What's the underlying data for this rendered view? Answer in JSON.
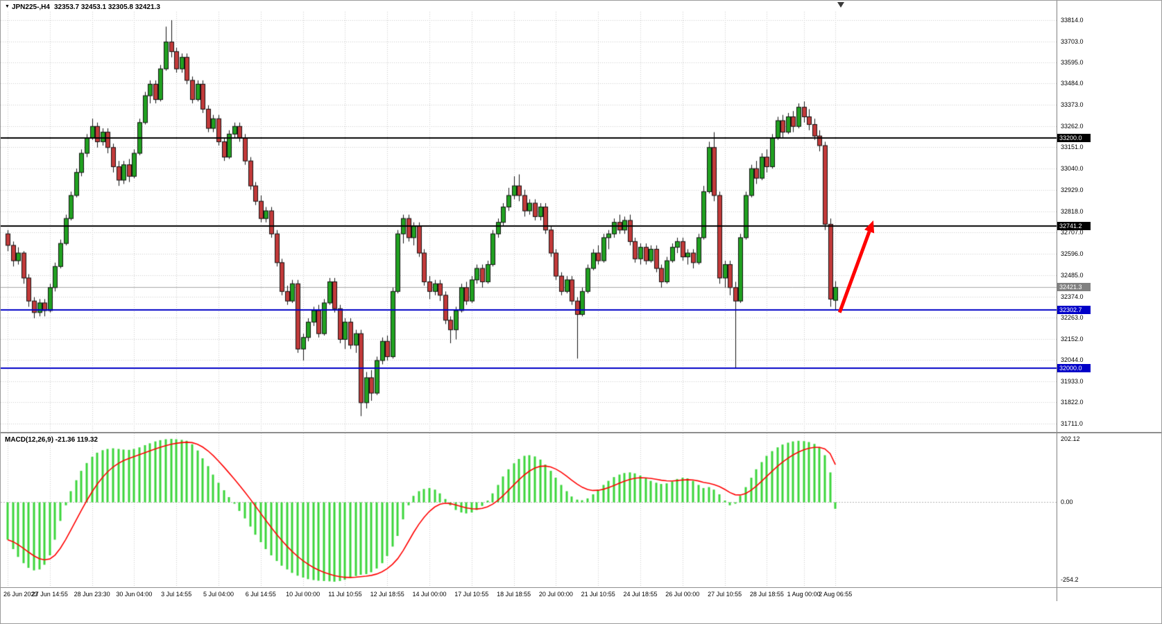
{
  "window": {
    "dropdown_icon": "▼",
    "symbol_info": "JPN225-,H4",
    "ohlc_info": "32353.7 32453.1 32305.8 32421.3"
  },
  "price_axis": {
    "ticks": [
      "33814.0",
      "33703.0",
      "33595.0",
      "33484.0",
      "33373.0",
      "33262.0",
      "33151.0",
      "33040.0",
      "32929.0",
      "32818.0",
      "32707.0",
      "32596.0",
      "32485.0",
      "32374.0",
      "32263.0",
      "32152.0",
      "32044.0",
      "31933.0",
      "31822.0",
      "31711.0"
    ]
  },
  "chart_data": {
    "type": "candlestick",
    "symbol": "JPN225-",
    "timeframe": "H4",
    "title": "JPN225-,H4",
    "last_ohlc": {
      "open": 32353.7,
      "high": 32453.1,
      "low": 32305.8,
      "close": 32421.3
    },
    "ylim": [
      31711.0,
      33814.0
    ],
    "colors": {
      "bull": "#21a121",
      "bear": "#c23a3a",
      "wick": "#111111",
      "grid": "#cdcdcd",
      "macd_bar": "#3cd63c",
      "macd_signal": "#ff0000",
      "hline_black": "#000000",
      "hline_blue": "#0000c8",
      "current_gray": "#808080",
      "arrow": "#ff0000"
    },
    "hlines": [
      {
        "price": 33200.0,
        "label": "33200.0",
        "color": "#000000",
        "width": 2
      },
      {
        "price": 32741.2,
        "label": "32741.2",
        "color": "#000000",
        "width": 2
      },
      {
        "price": 32302.7,
        "label": "32302.7",
        "color": "#0000c8",
        "width": 2
      },
      {
        "price": 32000.0,
        "label": "32000.0",
        "color": "#0000c8",
        "width": 2
      }
    ],
    "current_price": {
      "value": 32421.3,
      "label": "32421.3",
      "color": "#808080"
    },
    "arrow": {
      "from_i": 157.8,
      "from_price": 32290,
      "to_i": 164.2,
      "to_price": 32770,
      "stroke_width": 5
    },
    "time_labels": [
      {
        "text": "26 Jun 2023",
        "i": 0
      },
      {
        "text": "27 Jun 14:55",
        "i": 8
      },
      {
        "text": "28 Jun 23:30",
        "i": 16
      },
      {
        "text": "30 Jun 04:00",
        "i": 24
      },
      {
        "text": "3 Jul 14:55",
        "i": 32
      },
      {
        "text": "5 Jul 04:00",
        "i": 40
      },
      {
        "text": "6 Jul 14:55",
        "i": 48
      },
      {
        "text": "10 Jul 00:00",
        "i": 56
      },
      {
        "text": "11 Jul 10:55",
        "i": 64
      },
      {
        "text": "12 Jul 18:55",
        "i": 72
      },
      {
        "text": "14 Jul 00:00",
        "i": 80
      },
      {
        "text": "17 Jul 10:55",
        "i": 88
      },
      {
        "text": "18 Jul 18:55",
        "i": 96
      },
      {
        "text": "20 Jul 00:00",
        "i": 104
      },
      {
        "text": "21 Jul 10:55",
        "i": 112
      },
      {
        "text": "24 Jul 18:55",
        "i": 120
      },
      {
        "text": "26 Jul 00:00",
        "i": 128
      },
      {
        "text": "27 Jul 10:55",
        "i": 136
      },
      {
        "text": "28 Jul 18:55",
        "i": 144
      },
      {
        "text": "1 Aug 00:00",
        "i": 151
      },
      {
        "text": "2 Aug 06:55",
        "i": 157
      }
    ],
    "candles": [
      [
        32700,
        32720,
        32610,
        32640
      ],
      [
        32640,
        32660,
        32530,
        32560
      ],
      [
        32560,
        32630,
        32540,
        32600
      ],
      [
        32600,
        32610,
        32440,
        32470
      ],
      [
        32470,
        32490,
        32320,
        32350
      ],
      [
        32350,
        32370,
        32260,
        32290
      ],
      [
        32290,
        32360,
        32270,
        32340
      ],
      [
        32340,
        32360,
        32270,
        32300
      ],
      [
        32300,
        32440,
        32290,
        32420
      ],
      [
        32420,
        32550,
        32400,
        32530
      ],
      [
        32530,
        32670,
        32520,
        32650
      ],
      [
        32650,
        32800,
        32640,
        32780
      ],
      [
        32780,
        32920,
        32770,
        32900
      ],
      [
        32900,
        33040,
        32890,
        33020
      ],
      [
        33020,
        33140,
        33000,
        33120
      ],
      [
        33120,
        33220,
        33100,
        33200
      ],
      [
        33200,
        33300,
        33190,
        33260
      ],
      [
        33260,
        33280,
        33150,
        33180
      ],
      [
        33180,
        33250,
        33160,
        33230
      ],
      [
        33230,
        33250,
        33120,
        33150
      ],
      [
        33150,
        33170,
        33020,
        33050
      ],
      [
        33050,
        33080,
        32950,
        32980
      ],
      [
        32980,
        33080,
        32960,
        33060
      ],
      [
        33060,
        33090,
        32970,
        33000
      ],
      [
        33000,
        33140,
        32990,
        33120
      ],
      [
        33120,
        33300,
        33110,
        33280
      ],
      [
        33280,
        33440,
        33270,
        33420
      ],
      [
        33420,
        33500,
        33380,
        33480
      ],
      [
        33480,
        33500,
        33380,
        33400
      ],
      [
        33400,
        33580,
        33390,
        33560
      ],
      [
        33560,
        33780,
        33550,
        33700
      ],
      [
        33700,
        33814,
        33620,
        33650
      ],
      [
        33650,
        33670,
        33540,
        33560
      ],
      [
        33560,
        33640,
        33540,
        33620
      ],
      [
        33620,
        33640,
        33480,
        33500
      ],
      [
        33500,
        33520,
        33380,
        33400
      ],
      [
        33400,
        33500,
        33390,
        33480
      ],
      [
        33480,
        33500,
        33330,
        33350
      ],
      [
        33350,
        33370,
        33230,
        33250
      ],
      [
        33250,
        33320,
        33230,
        33300
      ],
      [
        33300,
        33320,
        33160,
        33180
      ],
      [
        33180,
        33200,
        33080,
        33100
      ],
      [
        33100,
        33240,
        33090,
        33220
      ],
      [
        33220,
        33280,
        33200,
        33260
      ],
      [
        33260,
        33280,
        33180,
        33200
      ],
      [
        33200,
        33220,
        33060,
        33080
      ],
      [
        33080,
        33100,
        32930,
        32950
      ],
      [
        32950,
        32970,
        32850,
        32870
      ],
      [
        32870,
        32900,
        32760,
        32780
      ],
      [
        32780,
        32840,
        32760,
        32820
      ],
      [
        32820,
        32840,
        32680,
        32700
      ],
      [
        32700,
        32720,
        32530,
        32550
      ],
      [
        32550,
        32570,
        32380,
        32400
      ],
      [
        32400,
        32430,
        32330,
        32350
      ],
      [
        32350,
        32460,
        32340,
        32440
      ],
      [
        32440,
        32460,
        32080,
        32100
      ],
      [
        32100,
        32180,
        32040,
        32160
      ],
      [
        32160,
        32260,
        32140,
        32240
      ],
      [
        32240,
        32320,
        32220,
        32300
      ],
      [
        32300,
        32330,
        32160,
        32180
      ],
      [
        32180,
        32360,
        32170,
        32340
      ],
      [
        32340,
        32470,
        32330,
        32450
      ],
      [
        32450,
        32470,
        32290,
        32310
      ],
      [
        32310,
        32330,
        32130,
        32150
      ],
      [
        32150,
        32260,
        32100,
        32240
      ],
      [
        32240,
        32260,
        32100,
        32120
      ],
      [
        32120,
        32200,
        32080,
        32180
      ],
      [
        32180,
        32200,
        31750,
        31820
      ],
      [
        31820,
        31980,
        31790,
        31950
      ],
      [
        31950,
        31990,
        31830,
        31870
      ],
      [
        31870,
        32060,
        31860,
        32040
      ],
      [
        32040,
        32160,
        32020,
        32140
      ],
      [
        32140,
        32170,
        32040,
        32060
      ],
      [
        32060,
        32420,
        32050,
        32400
      ],
      [
        32400,
        32720,
        32390,
        32700
      ],
      [
        32700,
        32800,
        32650,
        32780
      ],
      [
        32780,
        32800,
        32660,
        32680
      ],
      [
        32680,
        32760,
        32640,
        32740
      ],
      [
        32740,
        32760,
        32580,
        32600
      ],
      [
        32600,
        32620,
        32430,
        32450
      ],
      [
        32450,
        32480,
        32360,
        32400
      ],
      [
        32400,
        32460,
        32380,
        32440
      ],
      [
        32440,
        32460,
        32350,
        32380
      ],
      [
        32380,
        32400,
        32230,
        32250
      ],
      [
        32250,
        32270,
        32130,
        32200
      ],
      [
        32200,
        32320,
        32150,
        32300
      ],
      [
        32300,
        32440,
        32290,
        32420
      ],
      [
        32420,
        32450,
        32330,
        32350
      ],
      [
        32350,
        32480,
        32340,
        32460
      ],
      [
        32460,
        32540,
        32440,
        32520
      ],
      [
        32520,
        32540,
        32420,
        32450
      ],
      [
        32450,
        32560,
        32440,
        32540
      ],
      [
        32540,
        32720,
        32530,
        32700
      ],
      [
        32700,
        32780,
        32680,
        32760
      ],
      [
        32760,
        32860,
        32740,
        32840
      ],
      [
        32840,
        32940,
        32820,
        32900
      ],
      [
        32900,
        33000,
        32880,
        32950
      ],
      [
        32950,
        33010,
        32870,
        32900
      ],
      [
        32900,
        32930,
        32790,
        32820
      ],
      [
        32820,
        32880,
        32800,
        32860
      ],
      [
        32860,
        32880,
        32770,
        32790
      ],
      [
        32790,
        32860,
        32770,
        32840
      ],
      [
        32840,
        32860,
        32700,
        32720
      ],
      [
        32720,
        32740,
        32580,
        32600
      ],
      [
        32600,
        32620,
        32460,
        32480
      ],
      [
        32480,
        32500,
        32380,
        32400
      ],
      [
        32400,
        32480,
        32390,
        32460
      ],
      [
        32460,
        32480,
        32330,
        32350
      ],
      [
        32350,
        32370,
        32050,
        32280
      ],
      [
        32280,
        32420,
        32270,
        32400
      ],
      [
        32400,
        32540,
        32390,
        32520
      ],
      [
        32520,
        32620,
        32510,
        32600
      ],
      [
        32600,
        32640,
        32540,
        32560
      ],
      [
        32560,
        32700,
        32550,
        32680
      ],
      [
        32680,
        32720,
        32620,
        32700
      ],
      [
        32700,
        32780,
        32680,
        32760
      ],
      [
        32760,
        32800,
        32700,
        32720
      ],
      [
        32720,
        32790,
        32700,
        32770
      ],
      [
        32770,
        32800,
        32640,
        32660
      ],
      [
        32660,
        32680,
        32550,
        32570
      ],
      [
        32570,
        32650,
        32540,
        32630
      ],
      [
        32630,
        32650,
        32540,
        32560
      ],
      [
        32560,
        32640,
        32550,
        32620
      ],
      [
        32620,
        32640,
        32500,
        32520
      ],
      [
        32520,
        32540,
        32420,
        32450
      ],
      [
        32450,
        32580,
        32440,
        32560
      ],
      [
        32560,
        32650,
        32550,
        32630
      ],
      [
        32630,
        32680,
        32600,
        32660
      ],
      [
        32660,
        32680,
        32560,
        32580
      ],
      [
        32580,
        32620,
        32540,
        32600
      ],
      [
        32600,
        32620,
        32520,
        32550
      ],
      [
        32550,
        32700,
        32540,
        32680
      ],
      [
        32680,
        32950,
        32670,
        32920
      ],
      [
        32920,
        33180,
        32910,
        33150
      ],
      [
        33150,
        33230,
        32870,
        32900
      ],
      [
        32900,
        32920,
        32440,
        32470
      ],
      [
        32470,
        32560,
        32420,
        32540
      ],
      [
        32540,
        32560,
        32380,
        32420
      ],
      [
        32420,
        32450,
        32000,
        32350
      ],
      [
        32350,
        32700,
        32340,
        32680
      ],
      [
        32680,
        32920,
        32670,
        32900
      ],
      [
        32900,
        33060,
        32890,
        33040
      ],
      [
        33040,
        33080,
        32960,
        32990
      ],
      [
        32990,
        33120,
        32980,
        33100
      ],
      [
        33100,
        33140,
        33020,
        33050
      ],
      [
        33050,
        33220,
        33040,
        33200
      ],
      [
        33200,
        33310,
        33190,
        33290
      ],
      [
        33290,
        33320,
        33200,
        33230
      ],
      [
        33230,
        33330,
        33220,
        33310
      ],
      [
        33310,
        33340,
        33230,
        33260
      ],
      [
        33260,
        33380,
        33250,
        33360
      ],
      [
        33360,
        33390,
        33280,
        33310
      ],
      [
        33310,
        33350,
        33240,
        33270
      ],
      [
        33270,
        33300,
        33190,
        33210
      ],
      [
        33210,
        33240,
        33130,
        33160
      ],
      [
        33160,
        33180,
        32720,
        32750
      ],
      [
        32750,
        32780,
        32320,
        32360
      ],
      [
        32353.7,
        32453.1,
        32305.8,
        32421.3
      ]
    ],
    "macd": {
      "label": "MACD(12,26,9) -21.36 119.32",
      "main_value": -21.36,
      "signal_value": 119.32,
      "ymax": 202.12,
      "ymin": -254.2,
      "axis_max": "202.12",
      "axis_zero": "0.00",
      "axis_min": "-254.2",
      "values": [
        -120,
        -150,
        -175,
        -195,
        -210,
        -218,
        -215,
        -200,
        -170,
        -120,
        -60,
        -10,
        35,
        70,
        100,
        125,
        145,
        158,
        166,
        170,
        172,
        170,
        168,
        167,
        170,
        175,
        182,
        188,
        194,
        198,
        201,
        202.12,
        201,
        199,
        196,
        185,
        165,
        140,
        115,
        88,
        62,
        38,
        16,
        -5,
        -28,
        -52,
        -78,
        -104,
        -128,
        -150,
        -170,
        -188,
        -203,
        -215,
        -226,
        -235,
        -241,
        -246,
        -249,
        -251,
        -252,
        -253,
        -254.2,
        -252,
        -248,
        -242,
        -236,
        -232,
        -230,
        -224,
        -212,
        -195,
        -172,
        -142,
        -108,
        -55,
        -10,
        20,
        35,
        42,
        45,
        40,
        28,
        10,
        -10,
        -25,
        -33,
        -36,
        -33,
        -25,
        -12,
        5,
        28,
        55,
        82,
        105,
        124,
        138,
        148,
        150,
        146,
        136,
        120,
        100,
        78,
        55,
        35,
        18,
        8,
        6,
        12,
        25,
        40,
        55,
        68,
        80,
        88,
        93,
        95,
        92,
        85,
        76,
        68,
        62,
        58,
        60,
        66,
        74,
        78,
        76,
        68,
        55,
        45,
        48,
        40,
        25,
        5,
        -10,
        -5,
        20,
        48,
        78,
        105,
        128,
        148,
        163,
        175,
        184,
        190,
        194,
        196,
        195,
        192,
        186,
        176,
        150,
        95,
        -21.36
      ]
    }
  }
}
